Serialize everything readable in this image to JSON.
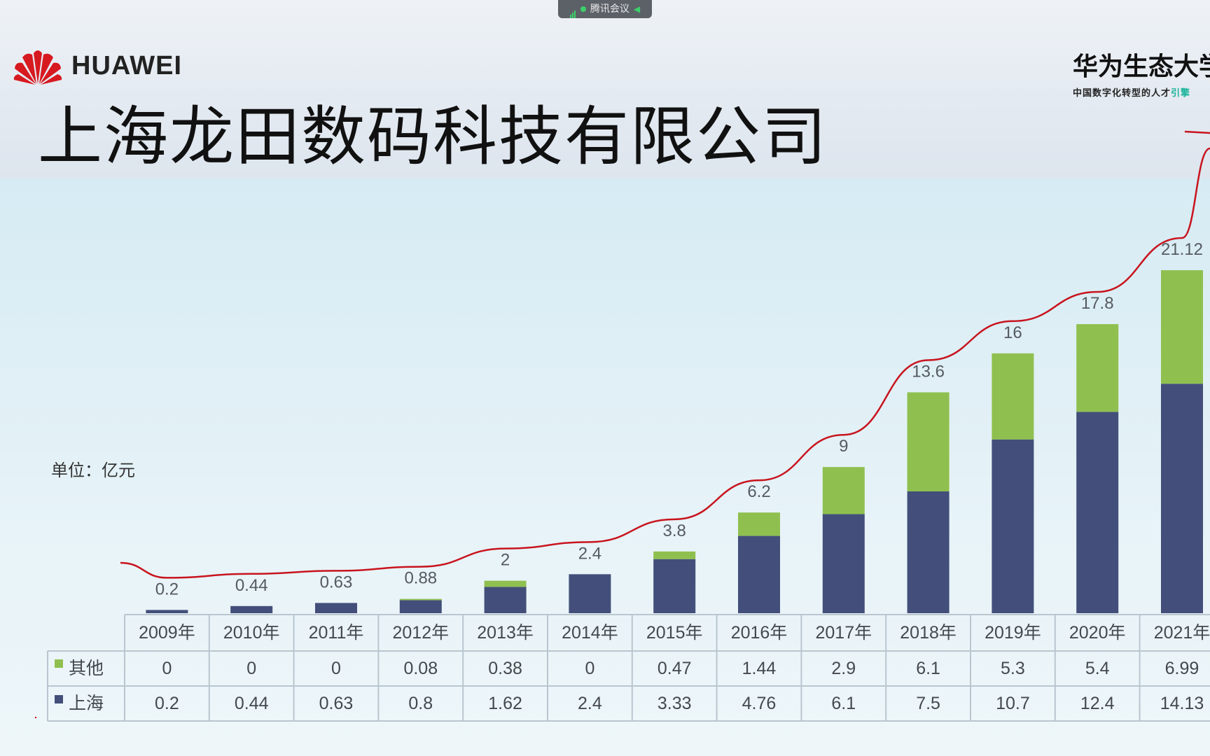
{
  "meeting_bar": {
    "label": "腾讯会议"
  },
  "header": {
    "logo_text": "HUAWEI",
    "company": "上海龙田数码科技有限公司",
    "university_title": "华为生态大学",
    "university_subtitle": "中国数字化转型的人才",
    "university_subtitle_highlight": "引擎"
  },
  "unit_label": "单位：亿元",
  "colors": {
    "shanghai": "#434f7a",
    "other": "#8fc04f",
    "trend": "#c8141e",
    "label_text": "#555a60"
  },
  "chart_data": {
    "type": "bar",
    "stacked": true,
    "title": "",
    "xlabel": "",
    "ylabel": "",
    "unit": "单位：亿元",
    "categories": [
      "2009年",
      "2010年",
      "2011年",
      "2012年",
      "2013年",
      "2014年",
      "2015年",
      "2016年",
      "2017年",
      "2018年",
      "2019年",
      "2020年",
      "2021年"
    ],
    "series": [
      {
        "name": "上海",
        "values": [
          0.2,
          0.44,
          0.63,
          0.8,
          1.62,
          2.4,
          3.33,
          4.76,
          6.1,
          7.5,
          10.7,
          12.4,
          14.13
        ]
      },
      {
        "name": "其他",
        "values": [
          0,
          0,
          0,
          0.08,
          0.38,
          0,
          0.47,
          1.44,
          2.9,
          6.1,
          5.3,
          5.4,
          6.99
        ]
      }
    ],
    "totals": [
      "0.2",
      "0.44",
      "0.63",
      "0.88",
      "2",
      "2.4",
      "3.8",
      "6.2",
      "9",
      "13.6",
      "16",
      "17.8",
      "21.12"
    ],
    "table_rows": [
      {
        "name": "其他",
        "values": [
          "0",
          "0",
          "0",
          "0.08",
          "0.38",
          "0",
          "0.47",
          "1.44",
          "2.9",
          "6.1",
          "5.3",
          "5.4",
          "6.99"
        ]
      },
      {
        "name": "上海",
        "values": [
          "0.2",
          "0.44",
          "0.63",
          "0.8",
          "1.62",
          "2.4",
          "3.33",
          "4.76",
          "6.1",
          "7.5",
          "10.7",
          "12.4",
          "14.13"
        ]
      }
    ],
    "trend_line": true,
    "legend": "in data table (left)"
  }
}
